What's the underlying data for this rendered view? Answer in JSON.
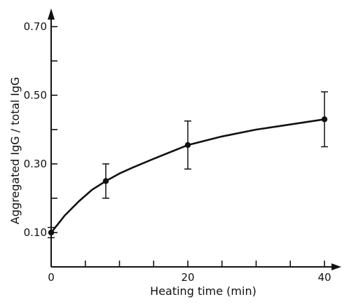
{
  "chart_data": {
    "type": "scatter",
    "title": "",
    "xlabel": "Heating time (min)",
    "ylabel": "Aggregated IgG / total IgG",
    "xlim": [
      0,
      45
    ],
    "ylim": [
      0.0,
      0.8
    ],
    "x_major_ticks": [
      0,
      20,
      40
    ],
    "x_tick_labels": [
      "0",
      "20",
      "40"
    ],
    "x_minor_ticks": [
      5,
      10,
      15,
      25,
      30,
      35
    ],
    "y_ticks": [
      0.1,
      0.2,
      0.3,
      0.4,
      0.5,
      0.6,
      0.7
    ],
    "y_tick_labels": [
      "0.10",
      "0.30",
      "0.50",
      "0.70"
    ],
    "y_tick_label_values": [
      0.1,
      0.3,
      0.5,
      0.7
    ],
    "grid": false,
    "series": [
      {
        "x": [
          0,
          8,
          20,
          40
        ],
        "y": [
          0.1,
          0.25,
          0.355,
          0.43
        ],
        "error": [
          0.015,
          0.05,
          0.07,
          0.08
        ]
      }
    ],
    "fit_curve": {
      "x": [
        0,
        1,
        2,
        4,
        6,
        8,
        10,
        12,
        15,
        20,
        25,
        30,
        35,
        40
      ],
      "y": [
        0.1,
        0.125,
        0.15,
        0.19,
        0.225,
        0.25,
        0.272,
        0.29,
        0.315,
        0.355,
        0.38,
        0.4,
        0.415,
        0.43
      ]
    }
  }
}
